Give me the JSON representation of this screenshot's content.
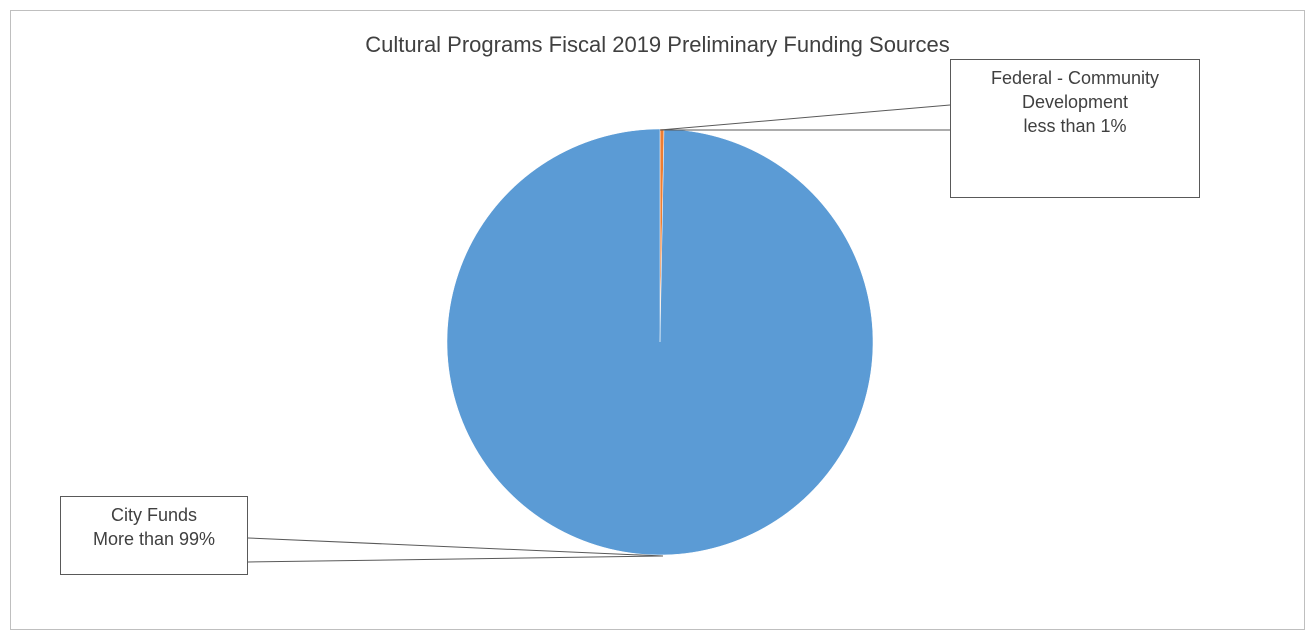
{
  "chart_data": {
    "type": "pie",
    "title": "Cultural Programs Fiscal 2019 Preliminary Funding Sources",
    "slices": [
      {
        "label": "Federal - Community Development",
        "value": 0.3,
        "display": "less than 1%",
        "color": "#ed7d31"
      },
      {
        "label": "City Funds",
        "value": 99.7,
        "display": "More than 99%",
        "color": "#5b9bd5"
      }
    ]
  },
  "callouts": {
    "federal": {
      "line1": "Federal - Community",
      "line2": "Development",
      "line3": "less than 1%"
    },
    "city": {
      "line1": "City Funds",
      "line2": "More than 99%"
    }
  }
}
